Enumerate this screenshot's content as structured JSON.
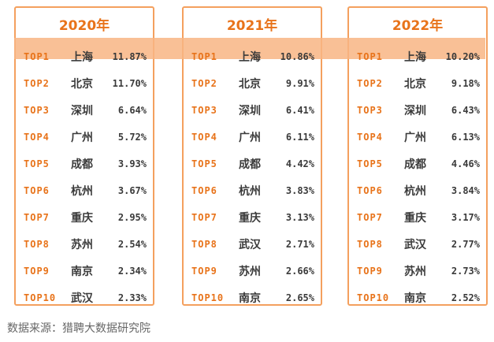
{
  "source": "数据来源：猎聘大数据研究院",
  "panels": [
    {
      "year": "2020年",
      "rows": [
        {
          "rank": "TOP1",
          "city": "上海",
          "pct": "11.87%"
        },
        {
          "rank": "TOP2",
          "city": "北京",
          "pct": "11.70%"
        },
        {
          "rank": "TOP3",
          "city": "深圳",
          "pct": "6.64%"
        },
        {
          "rank": "TOP4",
          "city": "广州",
          "pct": "5.72%"
        },
        {
          "rank": "TOP5",
          "city": "成都",
          "pct": "3.93%"
        },
        {
          "rank": "TOP6",
          "city": "杭州",
          "pct": "3.67%"
        },
        {
          "rank": "TOP7",
          "city": "重庆",
          "pct": "2.95%"
        },
        {
          "rank": "TOP8",
          "city": "苏州",
          "pct": "2.54%"
        },
        {
          "rank": "TOP9",
          "city": "南京",
          "pct": "2.34%"
        },
        {
          "rank": "TOP10",
          "city": "武汉",
          "pct": "2.33%"
        }
      ]
    },
    {
      "year": "2021年",
      "rows": [
        {
          "rank": "TOP1",
          "city": "上海",
          "pct": "10.86%"
        },
        {
          "rank": "TOP2",
          "city": "北京",
          "pct": "9.91%"
        },
        {
          "rank": "TOP3",
          "city": "深圳",
          "pct": "6.41%"
        },
        {
          "rank": "TOP4",
          "city": "广州",
          "pct": "6.11%"
        },
        {
          "rank": "TOP5",
          "city": "成都",
          "pct": "4.42%"
        },
        {
          "rank": "TOP6",
          "city": "杭州",
          "pct": "3.83%"
        },
        {
          "rank": "TOP7",
          "city": "重庆",
          "pct": "3.13%"
        },
        {
          "rank": "TOP8",
          "city": "武汉",
          "pct": "2.71%"
        },
        {
          "rank": "TOP9",
          "city": "苏州",
          "pct": "2.66%"
        },
        {
          "rank": "TOP10",
          "city": "南京",
          "pct": "2.65%"
        }
      ]
    },
    {
      "year": "2022年",
      "rows": [
        {
          "rank": "TOP1",
          "city": "上海",
          "pct": "10.20%"
        },
        {
          "rank": "TOP2",
          "city": "北京",
          "pct": "9.18%"
        },
        {
          "rank": "TOP3",
          "city": "深圳",
          "pct": "6.43%"
        },
        {
          "rank": "TOP4",
          "city": "广州",
          "pct": "6.13%"
        },
        {
          "rank": "TOP5",
          "city": "成都",
          "pct": "4.46%"
        },
        {
          "rank": "TOP6",
          "city": "杭州",
          "pct": "3.84%"
        },
        {
          "rank": "TOP7",
          "city": "重庆",
          "pct": "3.17%"
        },
        {
          "rank": "TOP8",
          "city": "武汉",
          "pct": "2.77%"
        },
        {
          "rank": "TOP9",
          "city": "苏州",
          "pct": "2.73%"
        },
        {
          "rank": "TOP10",
          "city": "南京",
          "pct": "2.52%"
        }
      ]
    }
  ],
  "colors": {
    "accent": "#e8731a",
    "border": "#f4a05e",
    "highlight": "#f8b584",
    "text": "#3a3a3a"
  }
}
